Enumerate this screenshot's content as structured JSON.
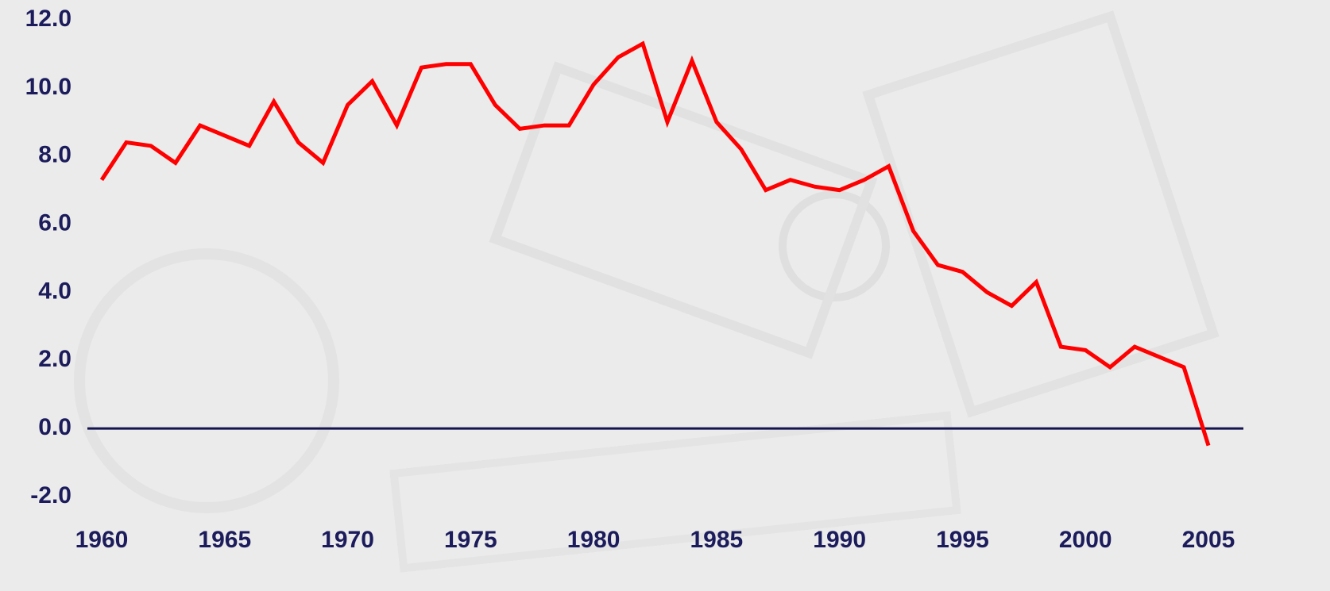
{
  "chart_data": {
    "type": "line",
    "x": [
      1960,
      1961,
      1962,
      1963,
      1964,
      1965,
      1966,
      1967,
      1968,
      1969,
      1970,
      1971,
      1972,
      1973,
      1974,
      1975,
      1976,
      1977,
      1978,
      1979,
      1980,
      1981,
      1982,
      1983,
      1984,
      1985,
      1986,
      1987,
      1988,
      1989,
      1990,
      1991,
      1992,
      1993,
      1994,
      1995,
      1996,
      1997,
      1998,
      1999,
      2000,
      2001,
      2002,
      2003,
      2004,
      2005
    ],
    "values": [
      7.3,
      8.4,
      8.3,
      7.8,
      8.9,
      8.6,
      8.3,
      9.6,
      8.4,
      7.8,
      9.5,
      10.2,
      8.9,
      10.6,
      10.7,
      10.7,
      9.5,
      8.8,
      8.9,
      8.9,
      10.1,
      10.9,
      11.3,
      9.0,
      10.8,
      9.0,
      8.2,
      7.0,
      7.3,
      7.1,
      7.0,
      7.3,
      7.7,
      5.8,
      4.8,
      4.6,
      4.0,
      3.6,
      4.3,
      2.4,
      2.3,
      1.8,
      2.4,
      2.1,
      1.8,
      -0.5
    ],
    "color": "#ff0000",
    "xlim": [
      1960,
      2005
    ],
    "xticks": [
      1960,
      1965,
      1970,
      1975,
      1980,
      1985,
      1990,
      1995,
      2000,
      2005
    ],
    "ylim": [
      -2,
      12
    ],
    "yticks": [
      {
        "value": -2,
        "label": "-2.0"
      },
      {
        "value": 0,
        "label": "0.0"
      },
      {
        "value": 2,
        "label": "2.0"
      },
      {
        "value": 4,
        "label": "4.0"
      },
      {
        "value": 6,
        "label": "6.0"
      },
      {
        "value": 8,
        "label": "8.0"
      },
      {
        "value": 10,
        "label": "10.0"
      },
      {
        "value": 12,
        "label": "12.0"
      }
    ],
    "grid": false
  }
}
